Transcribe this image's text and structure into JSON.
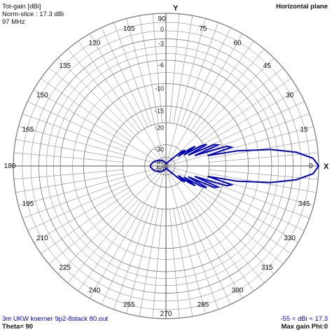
{
  "header": {
    "gain_label": "Tot-gain [dBi]",
    "norm_label": "Norm-slice : 17.3 dBi",
    "frequency": "97 MHz",
    "plane": "Horizontal plane"
  },
  "footer": {
    "filename": "3m UKW koerner 9p2-8stack 80.out",
    "theta": "Theta= 90",
    "range": "-55 < dBi < 17.3",
    "max_gain": "Max gain Phi:0"
  },
  "axis": {
    "y_label": "Y",
    "x_label": "X"
  },
  "colors": {
    "pattern": "#0000bb",
    "grid": "#777777",
    "text": "#111111"
  },
  "chart_data": {
    "type": "polar",
    "plane": "Horizontal plane",
    "angle_labels": [
      "0",
      "15",
      "30",
      "45",
      "60",
      "75",
      "90",
      "105",
      "120",
      "135",
      "150",
      "165",
      "180",
      "195",
      "210",
      "225",
      "240",
      "255",
      "270",
      "285",
      "300",
      "315",
      "330",
      "345"
    ],
    "angle_label_values": [
      0,
      15,
      30,
      45,
      60,
      75,
      90,
      105,
      120,
      135,
      150,
      165,
      180,
      195,
      210,
      225,
      240,
      255,
      270,
      285,
      300,
      315,
      330,
      345
    ],
    "radial_labels": [
      "0",
      "-3",
      "-6",
      "-10",
      "-15",
      "-20",
      "-30",
      "-40",
      "-50"
    ],
    "radial_db": [
      0,
      -3,
      -6,
      -10,
      -15,
      -20,
      -30,
      -40,
      -50
    ],
    "rlim_db": [
      -55,
      0
    ],
    "series": [
      {
        "phi_deg": [
          0,
          3,
          6,
          9,
          12,
          14,
          16,
          18,
          20,
          22,
          24,
          26,
          28,
          30,
          32,
          34,
          36,
          38,
          40,
          43,
          46,
          50,
          60,
          80,
          100,
          120,
          140,
          160,
          170,
          175,
          180
        ],
        "rel_gain_db": [
          0,
          -0.6,
          -2.5,
          -6,
          -12,
          -20,
          -13,
          -14,
          -25,
          -16,
          -17,
          -28,
          -19,
          -21,
          -30,
          -23,
          -26,
          -34,
          -28,
          -30,
          -35,
          -40,
          -45,
          -50,
          -48,
          -44,
          -40,
          -36,
          -35,
          -34,
          -34
        ]
      }
    ]
  }
}
